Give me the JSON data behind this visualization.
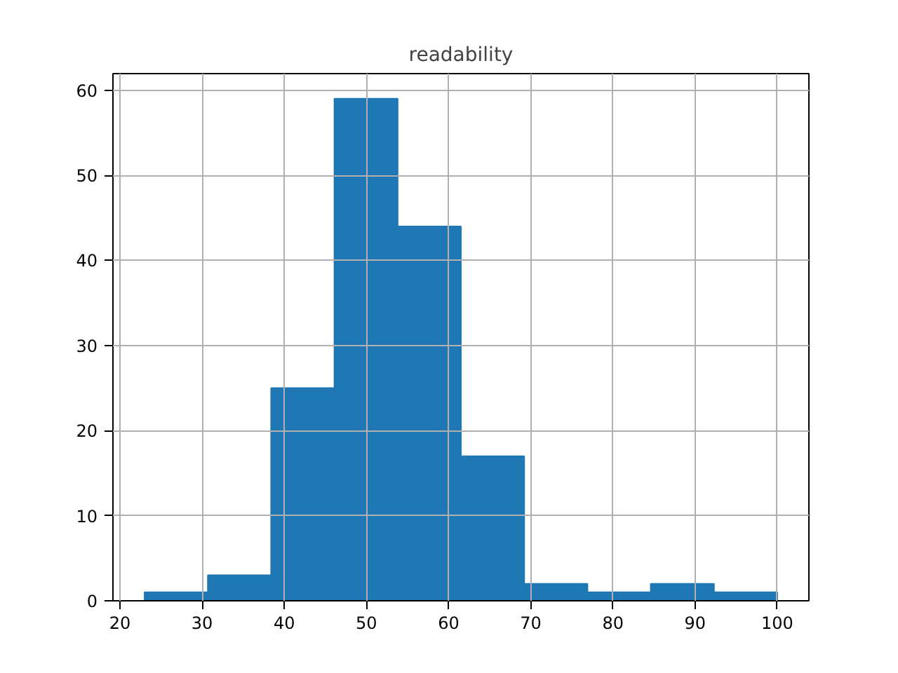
{
  "chart_data": {
    "type": "histogram",
    "title": "readability",
    "bins": [
      23,
      30.7,
      38.4,
      46.1,
      53.8,
      61.5,
      69.2,
      76.9,
      84.6,
      92.3,
      100
    ],
    "values": [
      1,
      3,
      25,
      59,
      44,
      17,
      2,
      1,
      2,
      1
    ],
    "color": "#1f77b4",
    "xlim": [
      19.15,
      103.85
    ],
    "xticks": [
      20,
      30,
      40,
      50,
      60,
      70,
      80,
      90,
      100
    ],
    "ylim": [
      0,
      61.95
    ],
    "yticks": [
      0,
      10,
      20,
      30,
      40,
      50,
      60
    ],
    "grid": true
  }
}
